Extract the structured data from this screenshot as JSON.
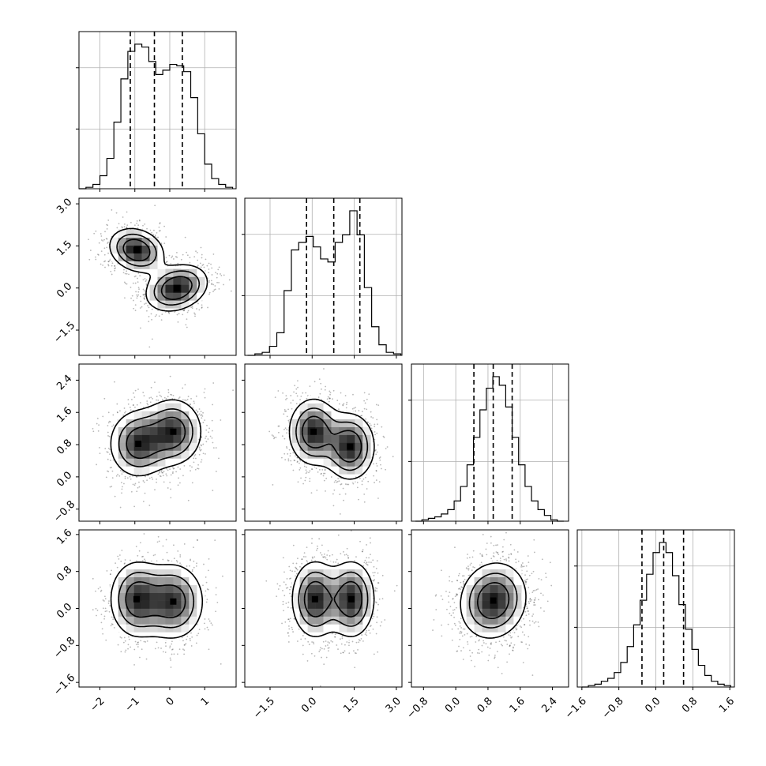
{
  "chart_data": {
    "type": "scatter",
    "subtype": "corner-plot",
    "title": "",
    "grid": true,
    "parameters": [
      {
        "ticks": [
          -2,
          -1,
          0,
          1
        ],
        "tick_labels": [
          "−2",
          "−1",
          "0",
          "1"
        ],
        "range": [
          -2.6,
          1.9
        ],
        "quantiles": [
          -1.13,
          -0.44,
          0.36
        ],
        "hist": {
          "edges": [
            -2.6,
            -2.4,
            -2.2,
            -2.0,
            -1.8,
            -1.6,
            -1.4,
            -1.2,
            -1.0,
            -0.8,
            -0.6,
            -0.4,
            -0.2,
            0.0,
            0.2,
            0.4,
            0.6,
            0.8,
            1.0,
            1.2,
            1.4,
            1.6,
            1.8
          ],
          "counts": [
            0.0,
            0.01,
            0.03,
            0.09,
            0.21,
            0.46,
            0.76,
            0.95,
            1.0,
            0.98,
            0.88,
            0.79,
            0.82,
            0.86,
            0.85,
            0.81,
            0.63,
            0.38,
            0.17,
            0.07,
            0.03,
            0.01
          ]
        }
      },
      {
        "ticks": [
          -1.5,
          0.0,
          1.5,
          3.0
        ],
        "tick_labels": [
          "−1.5",
          "0.0",
          "1.5",
          "3.0"
        ],
        "range": [
          -2.4,
          3.2
        ],
        "quantiles": [
          -0.2,
          0.77,
          1.7
        ],
        "hist": {
          "edges": [
            -2.3,
            -2.04,
            -1.78,
            -1.52,
            -1.26,
            -1.0,
            -0.74,
            -0.48,
            -0.22,
            0.04,
            0.3,
            0.56,
            0.82,
            1.08,
            1.34,
            1.6,
            1.86,
            2.12,
            2.38,
            2.64,
            2.9,
            3.16
          ],
          "counts": [
            0.0,
            0.01,
            0.02,
            0.06,
            0.15,
            0.43,
            0.7,
            0.75,
            0.79,
            0.72,
            0.64,
            0.62,
            0.75,
            0.8,
            0.96,
            0.8,
            0.45,
            0.19,
            0.07,
            0.02,
            0.01
          ]
        }
      },
      {
        "ticks": [
          -0.8,
          0.0,
          0.8,
          1.6,
          2.4
        ],
        "tick_labels": [
          "−0.8",
          "0.0",
          "0.8",
          "1.6",
          "2.4"
        ],
        "range": [
          -1.1,
          2.8
        ],
        "quantiles": [
          0.45,
          0.93,
          1.4
        ],
        "hist": {
          "edges": [
            -1.0,
            -0.84,
            -0.68,
            -0.52,
            -0.36,
            -0.2,
            -0.04,
            0.12,
            0.28,
            0.44,
            0.6,
            0.76,
            0.92,
            1.08,
            1.24,
            1.4,
            1.56,
            1.72,
            1.88,
            2.04,
            2.2,
            2.36,
            2.52,
            2.68
          ],
          "counts": [
            0.0,
            0.01,
            0.02,
            0.03,
            0.05,
            0.08,
            0.14,
            0.24,
            0.39,
            0.58,
            0.77,
            0.92,
            1.0,
            0.94,
            0.79,
            0.58,
            0.39,
            0.24,
            0.14,
            0.08,
            0.04,
            0.01,
            0.0
          ]
        }
      },
      {
        "ticks": [
          -1.6,
          -0.8,
          0.0,
          0.8,
          1.6
        ],
        "tick_labels": [
          "−1.6",
          "−0.8",
          "0.0",
          "0.8",
          "1.6"
        ],
        "range": [
          -1.7,
          1.7
        ],
        "quantiles": [
          -0.3,
          0.17,
          0.6
        ],
        "hist": {
          "edges": [
            -1.6,
            -1.46,
            -1.32,
            -1.18,
            -1.04,
            -0.9,
            -0.76,
            -0.62,
            -0.48,
            -0.34,
            -0.2,
            -0.06,
            0.08,
            0.22,
            0.36,
            0.5,
            0.64,
            0.78,
            0.92,
            1.06,
            1.2,
            1.34,
            1.48,
            1.62
          ],
          "counts": [
            0.0,
            0.01,
            0.02,
            0.04,
            0.06,
            0.1,
            0.17,
            0.28,
            0.43,
            0.6,
            0.78,
            0.93,
            1.0,
            0.93,
            0.77,
            0.57,
            0.4,
            0.26,
            0.15,
            0.08,
            0.04,
            0.02,
            0.01
          ]
        }
      }
    ],
    "pairs": [
      {
        "x": 0,
        "y": 1,
        "modes": [
          {
            "mean": [
              -0.95,
              1.35
            ],
            "sd": [
              0.42,
              0.42
            ],
            "rho": -0.2,
            "weight": 0.5
          },
          {
            "mean": [
              0.2,
              0.0
            ],
            "sd": [
              0.48,
              0.45
            ],
            "rho": 0.25,
            "weight": 0.5
          }
        ]
      },
      {
        "x": 0,
        "y": 2,
        "modes": [
          {
            "mean": [
              -0.9,
              0.82
            ],
            "sd": [
              0.45,
              0.45
            ],
            "rho": 0.0,
            "weight": 0.5
          },
          {
            "mean": [
              0.1,
              1.12
            ],
            "sd": [
              0.45,
              0.45
            ],
            "rho": 0.0,
            "weight": 0.5
          }
        ]
      },
      {
        "x": 1,
        "y": 2,
        "modes": [
          {
            "mean": [
              0.05,
              1.12
            ],
            "sd": [
              0.48,
              0.45
            ],
            "rho": 0.0,
            "weight": 0.5
          },
          {
            "mean": [
              1.35,
              0.75
            ],
            "sd": [
              0.48,
              0.45
            ],
            "rho": 0.0,
            "weight": 0.5
          }
        ]
      },
      {
        "x": 0,
        "y": 3,
        "modes": [
          {
            "mean": [
              -0.95,
              0.2
            ],
            "sd": [
              0.42,
              0.45
            ],
            "rho": 0.0,
            "weight": 0.5
          },
          {
            "mean": [
              0.1,
              0.15
            ],
            "sd": [
              0.48,
              0.45
            ],
            "rho": 0.0,
            "weight": 0.5
          }
        ]
      },
      {
        "x": 1,
        "y": 3,
        "modes": [
          {
            "mean": [
              0.1,
              0.2
            ],
            "sd": [
              0.45,
              0.45
            ],
            "rho": 0.0,
            "weight": 0.5
          },
          {
            "mean": [
              1.4,
              0.2
            ],
            "sd": [
              0.45,
              0.45
            ],
            "rho": 0.0,
            "weight": 0.5
          }
        ]
      },
      {
        "x": 2,
        "y": 3,
        "modes": [
          {
            "mean": [
              0.93,
              0.17
            ],
            "sd": [
              0.45,
              0.45
            ],
            "rho": 0.1,
            "weight": 1.0
          }
        ]
      }
    ]
  }
}
